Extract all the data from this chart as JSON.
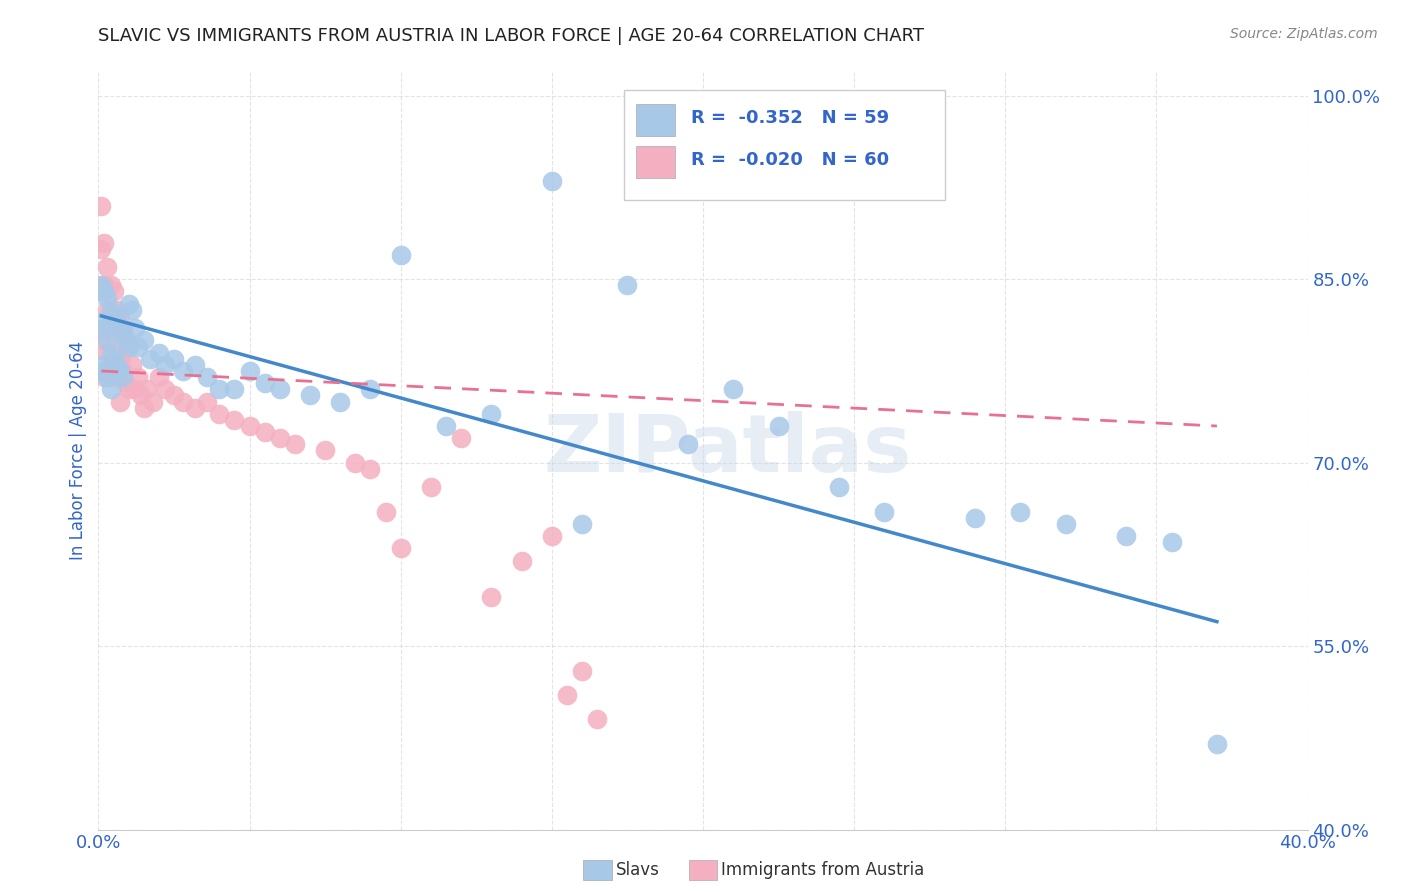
{
  "title": "SLAVIC VS IMMIGRANTS FROM AUSTRIA IN LABOR FORCE | AGE 20-64 CORRELATION CHART",
  "source": "Source: ZipAtlas.com",
  "ylabel": "In Labor Force | Age 20-64",
  "xlim": [
    0.0,
    0.4
  ],
  "ylim": [
    0.4,
    1.02
  ],
  "R_slavs": -0.352,
  "N_slavs": 59,
  "R_austria": -0.02,
  "N_austria": 60,
  "slavs_color": "#a8c8e8",
  "austria_color": "#f4b0c0",
  "slavs_line_color": "#4488cc",
  "austria_line_color": "#e87090",
  "legend_text_color": "#3366cc",
  "watermark": "ZIPatlas",
  "background_color": "#ffffff",
  "grid_color": "#dddddd",
  "title_color": "#222222",
  "axis_label_color": "#3366cc",
  "tick_color": "#3366cc",
  "slavs_x": [
    0.001,
    0.001,
    0.001,
    0.002,
    0.002,
    0.002,
    0.003,
    0.003,
    0.003,
    0.004,
    0.004,
    0.004,
    0.005,
    0.005,
    0.006,
    0.006,
    0.007,
    0.007,
    0.008,
    0.008,
    0.009,
    0.01,
    0.01,
    0.011,
    0.012,
    0.013,
    0.015,
    0.017,
    0.02,
    0.022,
    0.025,
    0.028,
    0.032,
    0.036,
    0.04,
    0.045,
    0.05,
    0.055,
    0.06,
    0.07,
    0.08,
    0.09,
    0.1,
    0.115,
    0.13,
    0.15,
    0.16,
    0.175,
    0.195,
    0.21,
    0.225,
    0.245,
    0.26,
    0.29,
    0.305,
    0.32,
    0.34,
    0.355,
    0.37
  ],
  "slavs_y": [
    0.845,
    0.815,
    0.78,
    0.84,
    0.81,
    0.775,
    0.835,
    0.8,
    0.77,
    0.825,
    0.79,
    0.76,
    0.82,
    0.785,
    0.815,
    0.78,
    0.81,
    0.775,
    0.805,
    0.77,
    0.8,
    0.83,
    0.795,
    0.825,
    0.81,
    0.795,
    0.8,
    0.785,
    0.79,
    0.78,
    0.785,
    0.775,
    0.78,
    0.77,
    0.76,
    0.76,
    0.775,
    0.765,
    0.76,
    0.755,
    0.75,
    0.76,
    0.87,
    0.73,
    0.74,
    0.93,
    0.65,
    0.845,
    0.715,
    0.76,
    0.73,
    0.68,
    0.66,
    0.655,
    0.66,
    0.65,
    0.64,
    0.635,
    0.47
  ],
  "austria_x": [
    0.001,
    0.001,
    0.001,
    0.001,
    0.002,
    0.002,
    0.002,
    0.002,
    0.003,
    0.003,
    0.003,
    0.004,
    0.004,
    0.004,
    0.005,
    0.005,
    0.005,
    0.006,
    0.006,
    0.007,
    0.007,
    0.007,
    0.008,
    0.008,
    0.009,
    0.009,
    0.01,
    0.01,
    0.011,
    0.012,
    0.013,
    0.014,
    0.015,
    0.016,
    0.018,
    0.02,
    0.022,
    0.025,
    0.028,
    0.032,
    0.036,
    0.04,
    0.045,
    0.05,
    0.055,
    0.06,
    0.065,
    0.075,
    0.085,
    0.09,
    0.095,
    0.1,
    0.11,
    0.12,
    0.13,
    0.14,
    0.15,
    0.155,
    0.16,
    0.165
  ],
  "austria_y": [
    0.91,
    0.875,
    0.84,
    0.8,
    0.88,
    0.845,
    0.81,
    0.77,
    0.86,
    0.825,
    0.79,
    0.845,
    0.81,
    0.775,
    0.84,
    0.805,
    0.77,
    0.825,
    0.79,
    0.82,
    0.785,
    0.75,
    0.81,
    0.775,
    0.8,
    0.765,
    0.795,
    0.76,
    0.78,
    0.76,
    0.77,
    0.755,
    0.745,
    0.76,
    0.75,
    0.77,
    0.76,
    0.755,
    0.75,
    0.745,
    0.75,
    0.74,
    0.735,
    0.73,
    0.725,
    0.72,
    0.715,
    0.71,
    0.7,
    0.695,
    0.66,
    0.63,
    0.68,
    0.72,
    0.59,
    0.62,
    0.64,
    0.51,
    0.53,
    0.49
  ],
  "trendline_slavs_x0": 0.001,
  "trendline_slavs_x1": 0.37,
  "trendline_slavs_y0": 0.82,
  "trendline_slavs_y1": 0.57,
  "trendline_austria_x0": 0.001,
  "trendline_austria_x1": 0.37,
  "trendline_austria_y0": 0.775,
  "trendline_austria_y1": 0.73
}
